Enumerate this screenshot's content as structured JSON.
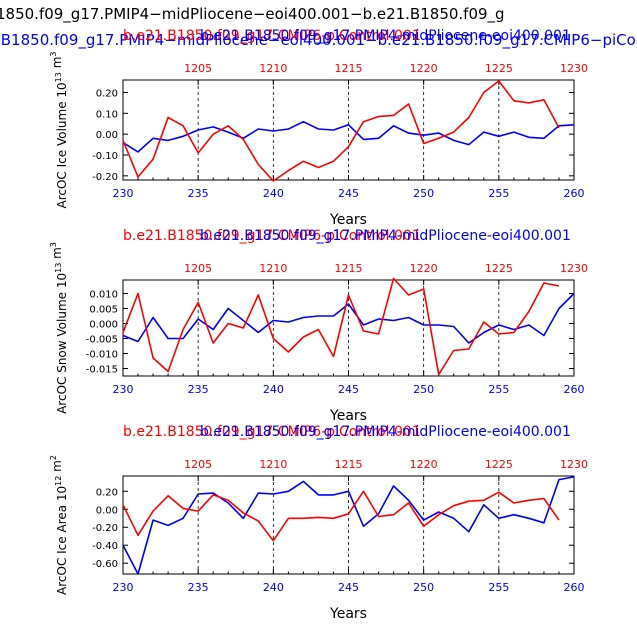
{
  "header": {
    "line1": "1850.f09_g17.PMIP4−midPliocene−eoi400.001−b.e21.B1850.f09_g",
    "line2": ".B1850.f09_g17.PMIP4−midPliocene−eoi400.001−b.e21.B1850.f09_g17.CMIP6−piCont"
  },
  "colors": {
    "control": "#ff0000",
    "experiment": "#0000ff",
    "axes": "#000000"
  },
  "chart_data": [
    {
      "type": "line",
      "title_red": "b.e21.B1850.f09_g17.CMIP6-piControl.001",
      "title_blue": "b.e21.B1850.f09_g17.PMIP4-midPliocene-eoi400.001",
      "ylabel": "ArcOC Ice Volume 10",
      "ylabel_exp": "13",
      "ylabel_unit": " m",
      "ylabel_unit_exp": "3",
      "xlabel": "Years",
      "xlim": [
        230,
        260
      ],
      "ylim": [
        -0.22,
        0.26
      ],
      "x_ticks": [
        "230",
        "235",
        "240",
        "245",
        "250",
        "255",
        "260"
      ],
      "top_ticks": [
        "1205",
        "1210",
        "1215",
        "1220",
        "1225",
        "1230"
      ],
      "y_ticks": [
        {
          "v": 0.2,
          "t": "0.20"
        },
        {
          "v": 0.1,
          "t": "0.10"
        },
        {
          "v": 0.0,
          "t": "0.00"
        },
        {
          "v": -0.1,
          "t": "-0.10"
        },
        {
          "v": -0.2,
          "t": "-0.20"
        }
      ],
      "series": [
        {
          "name": "b.e21.B1850.f09_g17.PMIP4-midPliocene-eoi400.001",
          "color": "#0000ff",
          "x": [
            230,
            231,
            232,
            233,
            234,
            235,
            236,
            237,
            238,
            239,
            240,
            241,
            242,
            243,
            244,
            245,
            246,
            247,
            248,
            249,
            250,
            251,
            252,
            253,
            254,
            255,
            256,
            257,
            258,
            259,
            260
          ],
          "values": [
            -0.04,
            -0.085,
            -0.02,
            -0.03,
            -0.01,
            0.02,
            0.035,
            0.01,
            -0.02,
            0.025,
            0.015,
            0.025,
            0.06,
            0.025,
            0.02,
            0.045,
            -0.025,
            -0.02,
            0.04,
            0.005,
            -0.005,
            0.005,
            -0.03,
            -0.05,
            0.01,
            -0.01,
            0.01,
            -0.015,
            -0.02,
            0.04,
            0.045
          ]
        },
        {
          "name": "b.e21.B1850.f09_g17.CMIP6-piControl.001",
          "color": "#ff0000",
          "x": [
            230,
            231,
            232,
            233,
            234,
            235,
            236,
            237,
            238,
            239,
            240,
            241,
            242,
            243,
            244,
            245,
            246,
            247,
            248,
            249,
            250,
            251,
            252,
            253,
            254,
            255,
            256,
            257,
            258,
            259
          ],
          "values": [
            -0.03,
            -0.205,
            -0.12,
            0.08,
            0.04,
            -0.09,
            0.0,
            0.04,
            -0.025,
            -0.145,
            -0.225,
            -0.175,
            -0.13,
            -0.16,
            -0.13,
            -0.06,
            0.06,
            0.085,
            0.09,
            0.145,
            -0.045,
            -0.02,
            0.01,
            0.08,
            0.2,
            0.255,
            0.16,
            0.15,
            0.165,
            0.03
          ]
        }
      ]
    },
    {
      "type": "line",
      "title_red": "b.e21.B1850.f09_g17.CMIP6-piControl.001",
      "title_blue": "b.e21.B1850.f09_g17.PMIP4-midPliocene-eoi400.001",
      "ylabel": "ArcOC Snow Volume 10",
      "ylabel_exp": "13",
      "ylabel_unit": " m",
      "ylabel_unit_exp": "3",
      "xlabel": "Years",
      "xlim": [
        230,
        260
      ],
      "ylim": [
        -0.0175,
        0.0145
      ],
      "x_ticks": [
        "230",
        "235",
        "240",
        "245",
        "250",
        "255",
        "260"
      ],
      "top_ticks": [
        "1205",
        "1210",
        "1215",
        "1220",
        "1225",
        "1230"
      ],
      "y_ticks": [
        {
          "v": 0.01,
          "t": "0.010"
        },
        {
          "v": 0.005,
          "t": "0.005"
        },
        {
          "v": 0.0,
          "t": "0.000"
        },
        {
          "v": -0.005,
          "t": "-0.005"
        },
        {
          "v": -0.01,
          "t": "-0.010"
        },
        {
          "v": -0.015,
          "t": "-0.015"
        }
      ],
      "series": [
        {
          "name": "b.e21.B1850.f09_g17.PMIP4-midPliocene-eoi400.001",
          "color": "#0000ff",
          "x": [
            230,
            231,
            232,
            233,
            234,
            235,
            236,
            237,
            238,
            239,
            240,
            241,
            242,
            243,
            244,
            245,
            246,
            247,
            248,
            249,
            250,
            251,
            252,
            253,
            254,
            255,
            256,
            257,
            258,
            259,
            260
          ],
          "values": [
            -0.004,
            -0.006,
            0.002,
            -0.005,
            -0.005,
            0.0015,
            -0.002,
            0.005,
            0.001,
            -0.003,
            0.001,
            0.0005,
            0.002,
            0.0025,
            0.0025,
            0.0065,
            -0.0005,
            0.0015,
            0.001,
            0.002,
            -0.0005,
            -0.0005,
            -0.001,
            -0.0065,
            -0.003,
            -0.0005,
            -0.002,
            -0.0005,
            -0.004,
            0.005,
            0.01
          ]
        },
        {
          "name": "b.e21.B1850.f09_g17.CMIP6-piControl.001",
          "color": "#ff0000",
          "x": [
            230,
            231,
            232,
            233,
            234,
            235,
            236,
            237,
            238,
            239,
            240,
            241,
            242,
            243,
            244,
            245,
            246,
            247,
            248,
            249,
            250,
            251,
            252,
            253,
            254,
            255,
            256,
            257,
            258,
            259
          ],
          "values": [
            -0.003,
            0.01,
            -0.0115,
            -0.016,
            -0.002,
            0.007,
            -0.0065,
            0.0,
            -0.0015,
            0.0095,
            -0.005,
            -0.0095,
            -0.0045,
            -0.002,
            -0.011,
            0.0095,
            -0.0025,
            -0.0035,
            0.015,
            0.0095,
            0.0115,
            -0.017,
            -0.009,
            -0.0085,
            0.0005,
            -0.0035,
            -0.003,
            0.004,
            0.0135,
            0.0125
          ]
        }
      ]
    },
    {
      "type": "line",
      "title_red": "b.e21.B1850.f09_g17.CMIP6-piControl.001",
      "title_blue": "b.e21.B1850.f09_g17.PMIP4-midPliocene-eoi400.001",
      "ylabel": "ArcOC Ice Area 10",
      "ylabel_exp": "12",
      "ylabel_unit": " m",
      "ylabel_unit_exp": "2",
      "xlabel": "Years",
      "xlim": [
        230,
        260
      ],
      "ylim": [
        -0.72,
        0.37
      ],
      "x_ticks": [
        "230",
        "235",
        "240",
        "245",
        "250",
        "255",
        "260"
      ],
      "top_ticks": [
        "1205",
        "1210",
        "1215",
        "1220",
        "1225",
        "1230"
      ],
      "y_ticks": [
        {
          "v": 0.2,
          "t": "0.20"
        },
        {
          "v": 0.0,
          "t": "0.00"
        },
        {
          "v": -0.2,
          "t": "-0.20"
        },
        {
          "v": -0.4,
          "t": "-0.40"
        },
        {
          "v": -0.6,
          "t": "-0.60"
        }
      ],
      "series": [
        {
          "name": "b.e21.B1850.f09_g17.PMIP4-midPliocene-eoi400.001",
          "color": "#0000ff",
          "x": [
            230,
            231,
            232,
            233,
            234,
            235,
            236,
            237,
            238,
            239,
            240,
            241,
            242,
            243,
            244,
            245,
            246,
            247,
            248,
            249,
            250,
            251,
            252,
            253,
            254,
            255,
            256,
            257,
            258,
            259,
            260
          ],
          "values": [
            -0.4,
            -0.72,
            -0.12,
            -0.18,
            -0.1,
            0.17,
            0.18,
            0.07,
            -0.1,
            0.18,
            0.17,
            0.2,
            0.31,
            0.16,
            0.16,
            0.2,
            -0.19,
            -0.05,
            0.26,
            0.1,
            -0.12,
            -0.03,
            -0.1,
            -0.25,
            0.05,
            -0.1,
            -0.06,
            -0.1,
            -0.15,
            0.33,
            0.36
          ]
        },
        {
          "name": "b.e21.B1850.f09_g17.CMIP6-piControl.001",
          "color": "#ff0000",
          "x": [
            230,
            231,
            232,
            233,
            234,
            235,
            236,
            237,
            238,
            239,
            240,
            241,
            242,
            243,
            244,
            245,
            246,
            247,
            248,
            249,
            250,
            251,
            252,
            253,
            254,
            255,
            256,
            257,
            258,
            259
          ],
          "values": [
            0.05,
            -0.29,
            -0.02,
            0.15,
            0.01,
            -0.02,
            0.16,
            0.1,
            -0.04,
            -0.13,
            -0.35,
            -0.1,
            -0.1,
            -0.09,
            -0.1,
            -0.05,
            0.2,
            -0.08,
            -0.06,
            0.07,
            -0.19,
            -0.06,
            0.04,
            0.09,
            0.1,
            0.19,
            0.07,
            0.1,
            0.12,
            -0.12
          ]
        }
      ]
    }
  ]
}
